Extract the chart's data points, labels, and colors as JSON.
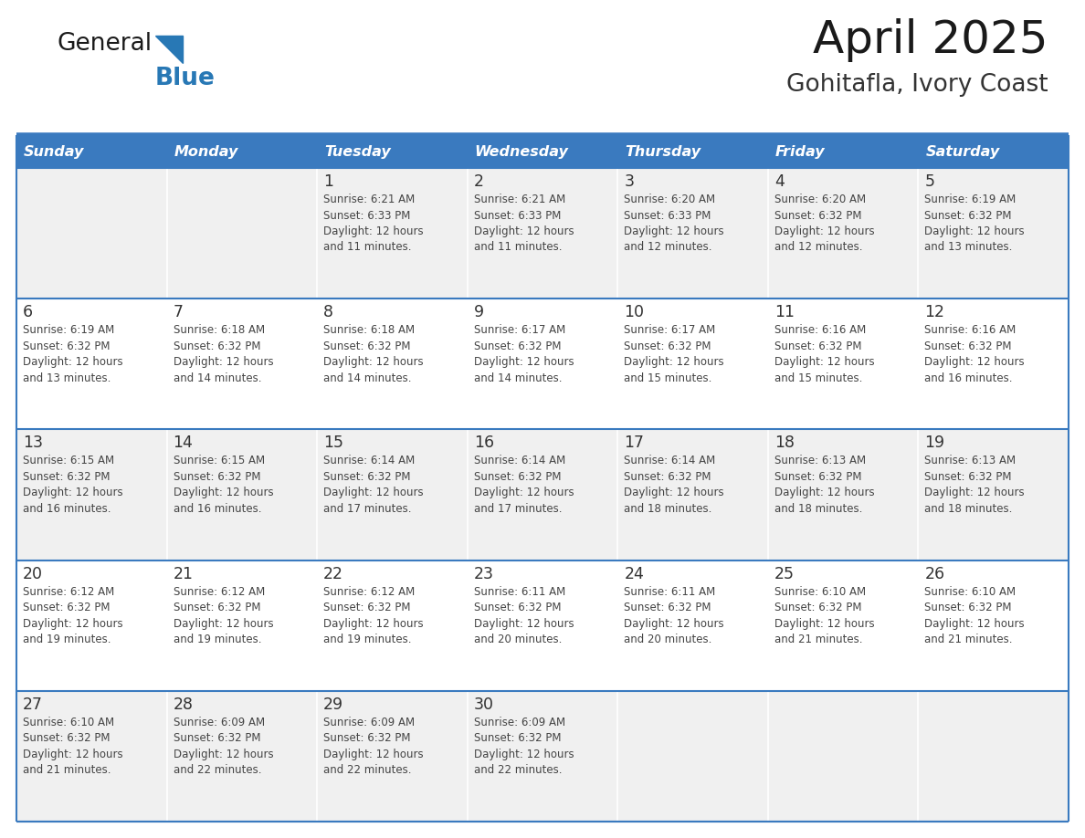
{
  "title": "April 2025",
  "subtitle": "Gohitafla, Ivory Coast",
  "header_bg_color": "#3a7abf",
  "header_text_color": "#ffffff",
  "odd_row_bg": "#f0f0f0",
  "even_row_bg": "#ffffff",
  "day_number_color": "#333333",
  "cell_text_color": "#444444",
  "border_color": "#3a7abf",
  "logo_text_color": "#1a1a1a",
  "logo_blue_color": "#2878b5",
  "days_of_week": [
    "Sunday",
    "Monday",
    "Tuesday",
    "Wednesday",
    "Thursday",
    "Friday",
    "Saturday"
  ],
  "weeks": [
    [
      {
        "day": "",
        "info": ""
      },
      {
        "day": "",
        "info": ""
      },
      {
        "day": "1",
        "info": "Sunrise: 6:21 AM\nSunset: 6:33 PM\nDaylight: 12 hours\nand 11 minutes."
      },
      {
        "day": "2",
        "info": "Sunrise: 6:21 AM\nSunset: 6:33 PM\nDaylight: 12 hours\nand 11 minutes."
      },
      {
        "day": "3",
        "info": "Sunrise: 6:20 AM\nSunset: 6:33 PM\nDaylight: 12 hours\nand 12 minutes."
      },
      {
        "day": "4",
        "info": "Sunrise: 6:20 AM\nSunset: 6:32 PM\nDaylight: 12 hours\nand 12 minutes."
      },
      {
        "day": "5",
        "info": "Sunrise: 6:19 AM\nSunset: 6:32 PM\nDaylight: 12 hours\nand 13 minutes."
      }
    ],
    [
      {
        "day": "6",
        "info": "Sunrise: 6:19 AM\nSunset: 6:32 PM\nDaylight: 12 hours\nand 13 minutes."
      },
      {
        "day": "7",
        "info": "Sunrise: 6:18 AM\nSunset: 6:32 PM\nDaylight: 12 hours\nand 14 minutes."
      },
      {
        "day": "8",
        "info": "Sunrise: 6:18 AM\nSunset: 6:32 PM\nDaylight: 12 hours\nand 14 minutes."
      },
      {
        "day": "9",
        "info": "Sunrise: 6:17 AM\nSunset: 6:32 PM\nDaylight: 12 hours\nand 14 minutes."
      },
      {
        "day": "10",
        "info": "Sunrise: 6:17 AM\nSunset: 6:32 PM\nDaylight: 12 hours\nand 15 minutes."
      },
      {
        "day": "11",
        "info": "Sunrise: 6:16 AM\nSunset: 6:32 PM\nDaylight: 12 hours\nand 15 minutes."
      },
      {
        "day": "12",
        "info": "Sunrise: 6:16 AM\nSunset: 6:32 PM\nDaylight: 12 hours\nand 16 minutes."
      }
    ],
    [
      {
        "day": "13",
        "info": "Sunrise: 6:15 AM\nSunset: 6:32 PM\nDaylight: 12 hours\nand 16 minutes."
      },
      {
        "day": "14",
        "info": "Sunrise: 6:15 AM\nSunset: 6:32 PM\nDaylight: 12 hours\nand 16 minutes."
      },
      {
        "day": "15",
        "info": "Sunrise: 6:14 AM\nSunset: 6:32 PM\nDaylight: 12 hours\nand 17 minutes."
      },
      {
        "day": "16",
        "info": "Sunrise: 6:14 AM\nSunset: 6:32 PM\nDaylight: 12 hours\nand 17 minutes."
      },
      {
        "day": "17",
        "info": "Sunrise: 6:14 AM\nSunset: 6:32 PM\nDaylight: 12 hours\nand 18 minutes."
      },
      {
        "day": "18",
        "info": "Sunrise: 6:13 AM\nSunset: 6:32 PM\nDaylight: 12 hours\nand 18 minutes."
      },
      {
        "day": "19",
        "info": "Sunrise: 6:13 AM\nSunset: 6:32 PM\nDaylight: 12 hours\nand 18 minutes."
      }
    ],
    [
      {
        "day": "20",
        "info": "Sunrise: 6:12 AM\nSunset: 6:32 PM\nDaylight: 12 hours\nand 19 minutes."
      },
      {
        "day": "21",
        "info": "Sunrise: 6:12 AM\nSunset: 6:32 PM\nDaylight: 12 hours\nand 19 minutes."
      },
      {
        "day": "22",
        "info": "Sunrise: 6:12 AM\nSunset: 6:32 PM\nDaylight: 12 hours\nand 19 minutes."
      },
      {
        "day": "23",
        "info": "Sunrise: 6:11 AM\nSunset: 6:32 PM\nDaylight: 12 hours\nand 20 minutes."
      },
      {
        "day": "24",
        "info": "Sunrise: 6:11 AM\nSunset: 6:32 PM\nDaylight: 12 hours\nand 20 minutes."
      },
      {
        "day": "25",
        "info": "Sunrise: 6:10 AM\nSunset: 6:32 PM\nDaylight: 12 hours\nand 21 minutes."
      },
      {
        "day": "26",
        "info": "Sunrise: 6:10 AM\nSunset: 6:32 PM\nDaylight: 12 hours\nand 21 minutes."
      }
    ],
    [
      {
        "day": "27",
        "info": "Sunrise: 6:10 AM\nSunset: 6:32 PM\nDaylight: 12 hours\nand 21 minutes."
      },
      {
        "day": "28",
        "info": "Sunrise: 6:09 AM\nSunset: 6:32 PM\nDaylight: 12 hours\nand 22 minutes."
      },
      {
        "day": "29",
        "info": "Sunrise: 6:09 AM\nSunset: 6:32 PM\nDaylight: 12 hours\nand 22 minutes."
      },
      {
        "day": "30",
        "info": "Sunrise: 6:09 AM\nSunset: 6:32 PM\nDaylight: 12 hours\nand 22 minutes."
      },
      {
        "day": "",
        "info": ""
      },
      {
        "day": "",
        "info": ""
      },
      {
        "day": "",
        "info": ""
      }
    ]
  ]
}
